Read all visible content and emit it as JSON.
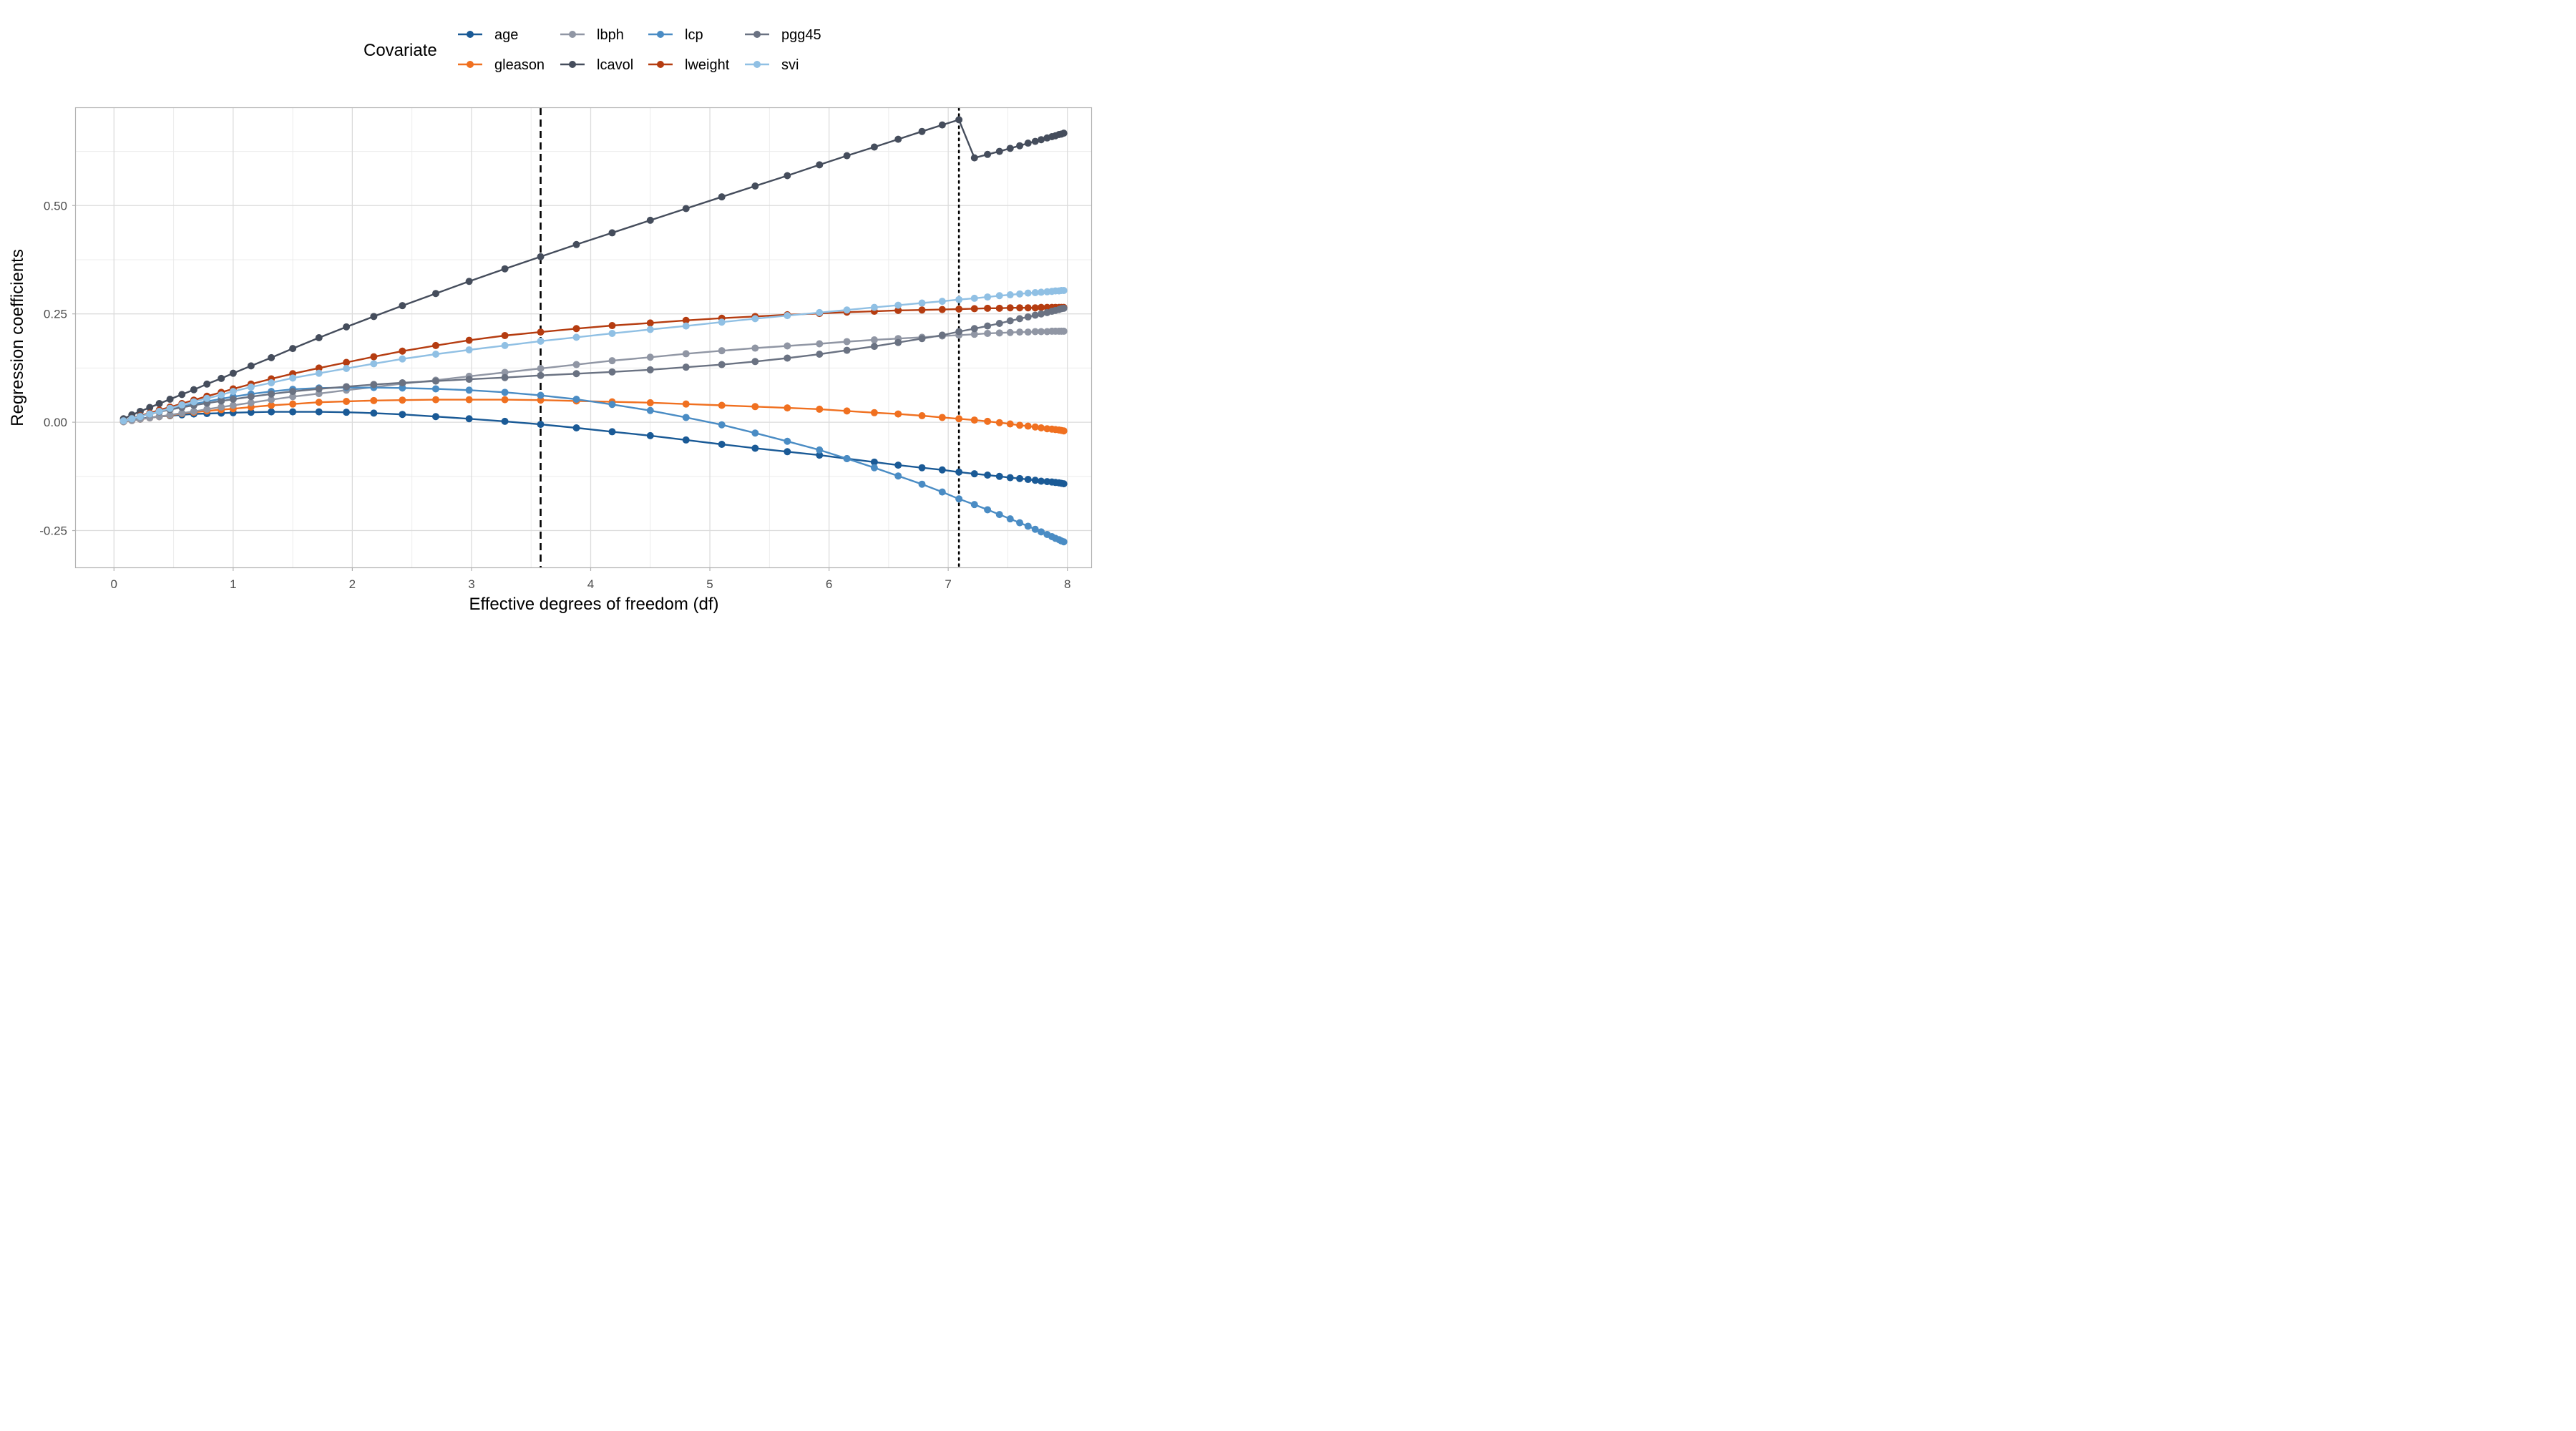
{
  "chart_data": {
    "type": "line",
    "xlabel": "Effective degrees of freedom (df)",
    "ylabel": "Regression coefficients",
    "xlim": [
      -0.32,
      8.2
    ],
    "ylim": [
      -0.335,
      0.725
    ],
    "x_ticks": [
      0,
      1,
      2,
      3,
      4,
      5,
      6,
      7,
      8
    ],
    "x_tick_labels": [
      "0",
      "1",
      "2",
      "3",
      "4",
      "5",
      "6",
      "7",
      "8"
    ],
    "y_ticks": [
      -0.25,
      0,
      0.25,
      0.5
    ],
    "y_tick_labels": [
      "-0.25",
      "0.00",
      "0.25",
      "0.50"
    ],
    "grid": true,
    "legend_title": "Covariate",
    "legend_position": "top",
    "vlines": [
      {
        "x": 3.58,
        "style": "dashed"
      },
      {
        "x": 7.09,
        "style": "dotted"
      }
    ],
    "x": [
      0.08,
      0.15,
      0.22,
      0.3,
      0.38,
      0.47,
      0.57,
      0.67,
      0.78,
      0.9,
      1.0,
      1.15,
      1.32,
      1.5,
      1.72,
      1.95,
      2.18,
      2.42,
      2.7,
      2.98,
      3.28,
      3.58,
      3.88,
      4.18,
      4.5,
      4.8,
      5.1,
      5.38,
      5.65,
      5.92,
      6.15,
      6.38,
      6.58,
      6.78,
      6.95,
      7.09,
      7.22,
      7.33,
      7.43,
      7.52,
      7.6,
      7.67,
      7.73,
      7.78,
      7.83,
      7.87,
      7.9,
      7.93,
      7.95,
      7.97
    ],
    "series": [
      {
        "name": "age",
        "color": "#1a5a96",
        "values": [
          0.002,
          0.005,
          0.008,
          0.011,
          0.013,
          0.015,
          0.017,
          0.019,
          0.02,
          0.021,
          0.022,
          0.023,
          0.024,
          0.024,
          0.024,
          0.023,
          0.021,
          0.018,
          0.013,
          0.008,
          0.002,
          -0.005,
          -0.013,
          -0.022,
          -0.031,
          -0.041,
          -0.051,
          -0.06,
          -0.068,
          -0.076,
          -0.084,
          -0.092,
          -0.099,
          -0.105,
          -0.11,
          -0.115,
          -0.119,
          -0.122,
          -0.125,
          -0.128,
          -0.13,
          -0.132,
          -0.134,
          -0.136,
          -0.137,
          -0.138,
          -0.139,
          -0.14,
          -0.141,
          -0.142
        ]
      },
      {
        "name": "gleason",
        "color": "#f07020",
        "values": [
          0.001,
          0.004,
          0.007,
          0.01,
          0.013,
          0.016,
          0.02,
          0.023,
          0.026,
          0.029,
          0.031,
          0.035,
          0.039,
          0.042,
          0.046,
          0.048,
          0.05,
          0.051,
          0.052,
          0.052,
          0.052,
          0.051,
          0.049,
          0.047,
          0.045,
          0.042,
          0.039,
          0.036,
          0.033,
          0.03,
          0.026,
          0.022,
          0.019,
          0.015,
          0.011,
          0.008,
          0.005,
          0.002,
          -0.001,
          -0.004,
          -0.007,
          -0.009,
          -0.011,
          -0.013,
          -0.015,
          -0.016,
          -0.017,
          -0.018,
          -0.019,
          -0.02
        ]
      },
      {
        "name": "lbph",
        "color": "#9096a4",
        "values": [
          0.001,
          0.004,
          0.007,
          0.01,
          0.013,
          0.017,
          0.021,
          0.025,
          0.03,
          0.035,
          0.039,
          0.045,
          0.052,
          0.059,
          0.066,
          0.074,
          0.081,
          0.089,
          0.097,
          0.106,
          0.115,
          0.124,
          0.133,
          0.142,
          0.15,
          0.158,
          0.165,
          0.171,
          0.176,
          0.181,
          0.186,
          0.19,
          0.193,
          0.196,
          0.199,
          0.201,
          0.203,
          0.205,
          0.206,
          0.207,
          0.208,
          0.208,
          0.209,
          0.209,
          0.209,
          0.21,
          0.21,
          0.21,
          0.21,
          0.21
        ]
      },
      {
        "name": "lcavol",
        "color": "#454d5c",
        "values": [
          0.008,
          0.017,
          0.025,
          0.034,
          0.043,
          0.053,
          0.064,
          0.075,
          0.088,
          0.101,
          0.113,
          0.13,
          0.149,
          0.17,
          0.195,
          0.22,
          0.244,
          0.269,
          0.297,
          0.325,
          0.354,
          0.382,
          0.41,
          0.437,
          0.466,
          0.493,
          0.52,
          0.545,
          0.569,
          0.594,
          0.615,
          0.635,
          0.653,
          0.671,
          0.686,
          0.698,
          0.61,
          0.618,
          0.625,
          0.632,
          0.638,
          0.644,
          0.648,
          0.652,
          0.656,
          0.659,
          0.661,
          0.664,
          0.665,
          0.667
        ]
      },
      {
        "name": "lcp",
        "color": "#4a8cc4",
        "values": [
          0.003,
          0.008,
          0.013,
          0.019,
          0.024,
          0.03,
          0.036,
          0.042,
          0.048,
          0.054,
          0.059,
          0.065,
          0.071,
          0.076,
          0.079,
          0.08,
          0.08,
          0.079,
          0.077,
          0.074,
          0.069,
          0.062,
          0.053,
          0.041,
          0.027,
          0.011,
          -0.006,
          -0.025,
          -0.044,
          -0.064,
          -0.084,
          -0.105,
          -0.124,
          -0.143,
          -0.161,
          -0.177,
          -0.19,
          -0.202,
          -0.213,
          -0.223,
          -0.232,
          -0.24,
          -0.247,
          -0.253,
          -0.259,
          -0.264,
          -0.268,
          -0.271,
          -0.274,
          -0.276
        ]
      },
      {
        "name": "lweight",
        "color": "#b53c10",
        "values": [
          0.003,
          0.009,
          0.015,
          0.021,
          0.028,
          0.035,
          0.043,
          0.051,
          0.06,
          0.069,
          0.077,
          0.088,
          0.1,
          0.112,
          0.125,
          0.138,
          0.151,
          0.164,
          0.177,
          0.189,
          0.2,
          0.208,
          0.216,
          0.223,
          0.229,
          0.235,
          0.24,
          0.244,
          0.248,
          0.251,
          0.254,
          0.256,
          0.258,
          0.259,
          0.26,
          0.261,
          0.262,
          0.263,
          0.263,
          0.264,
          0.264,
          0.264,
          0.264,
          0.265,
          0.265,
          0.265,
          0.265,
          0.265,
          0.265,
          0.265
        ]
      },
      {
        "name": "pgg45",
        "color": "#6a7282",
        "values": [
          0.004,
          0.009,
          0.014,
          0.019,
          0.024,
          0.029,
          0.034,
          0.039,
          0.044,
          0.049,
          0.053,
          0.059,
          0.065,
          0.071,
          0.077,
          0.082,
          0.087,
          0.091,
          0.095,
          0.099,
          0.103,
          0.108,
          0.112,
          0.116,
          0.121,
          0.127,
          0.133,
          0.14,
          0.148,
          0.157,
          0.166,
          0.175,
          0.184,
          0.193,
          0.201,
          0.209,
          0.216,
          0.222,
          0.228,
          0.234,
          0.239,
          0.243,
          0.247,
          0.25,
          0.253,
          0.256,
          0.258,
          0.26,
          0.262,
          0.263
        ]
      },
      {
        "name": "svi",
        "color": "#90c0e4",
        "values": [
          0.003,
          0.008,
          0.013,
          0.019,
          0.025,
          0.032,
          0.04,
          0.047,
          0.055,
          0.063,
          0.071,
          0.081,
          0.091,
          0.102,
          0.113,
          0.124,
          0.135,
          0.146,
          0.157,
          0.167,
          0.177,
          0.187,
          0.196,
          0.205,
          0.214,
          0.222,
          0.231,
          0.239,
          0.246,
          0.253,
          0.259,
          0.265,
          0.27,
          0.275,
          0.279,
          0.283,
          0.286,
          0.289,
          0.292,
          0.294,
          0.296,
          0.298,
          0.299,
          0.3,
          0.301,
          0.302,
          0.303,
          0.303,
          0.304,
          0.304
        ]
      }
    ]
  }
}
